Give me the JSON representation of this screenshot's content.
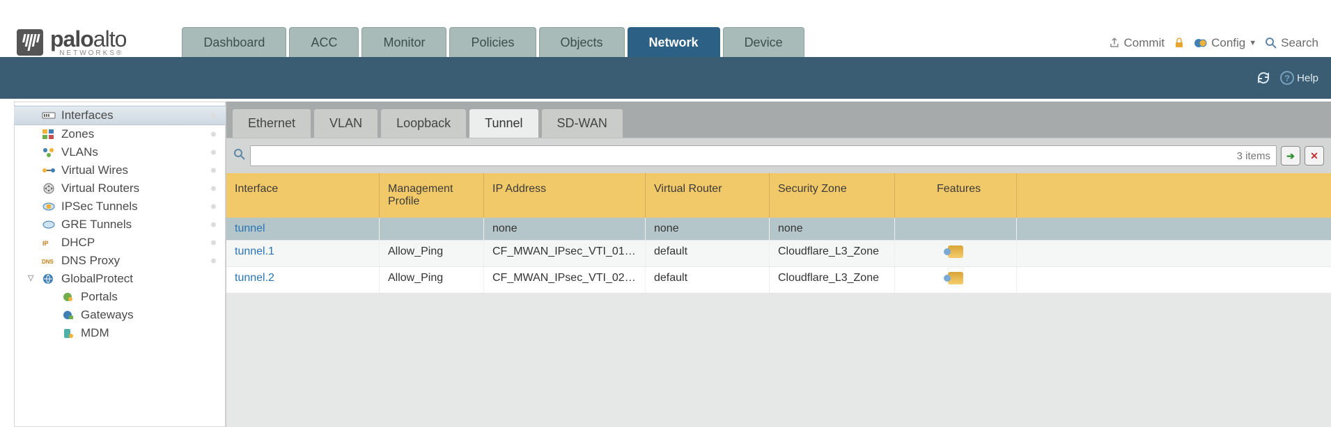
{
  "logo": {
    "main_bold": "palo",
    "main_rest": "alto",
    "sub": "NETWORKS®"
  },
  "main_tabs": [
    {
      "label": "Dashboard"
    },
    {
      "label": "ACC"
    },
    {
      "label": "Monitor"
    },
    {
      "label": "Policies"
    },
    {
      "label": "Objects"
    },
    {
      "label": "Network",
      "active": true
    },
    {
      "label": "Device"
    }
  ],
  "top_actions": {
    "commit": "Commit",
    "config": "Config",
    "search": "Search"
  },
  "help_label": "Help",
  "sidebar": [
    {
      "label": "Interfaces",
      "selected": true,
      "dot": true,
      "icon": "iface"
    },
    {
      "label": "Zones",
      "dot": true,
      "icon": "zones"
    },
    {
      "label": "VLANs",
      "dot": true,
      "icon": "vlans"
    },
    {
      "label": "Virtual Wires",
      "dot": true,
      "icon": "vwire"
    },
    {
      "label": "Virtual Routers",
      "dot": true,
      "icon": "vrouter"
    },
    {
      "label": "IPSec Tunnels",
      "dot": true,
      "icon": "ipsec"
    },
    {
      "label": "GRE Tunnels",
      "dot": true,
      "icon": "gre"
    },
    {
      "label": "DHCP",
      "dot": true,
      "icon": "dhcp"
    },
    {
      "label": "DNS Proxy",
      "dot": true,
      "icon": "dns"
    },
    {
      "label": "GlobalProtect",
      "dot": false,
      "icon": "gp",
      "expandable": true
    },
    {
      "label": "Portals",
      "lvl": 2,
      "icon": "portals"
    },
    {
      "label": "Gateways",
      "lvl": 2,
      "icon": "gw"
    },
    {
      "label": "MDM",
      "lvl": 2,
      "icon": "mdm"
    }
  ],
  "sub_tabs": [
    {
      "label": "Ethernet"
    },
    {
      "label": "VLAN"
    },
    {
      "label": "Loopback"
    },
    {
      "label": "Tunnel",
      "active": true
    },
    {
      "label": "SD-WAN"
    }
  ],
  "search_placeholder": "3 items",
  "grid": {
    "columns": [
      "Interface",
      "Management Profile",
      "IP Address",
      "Virtual Router",
      "Security Zone",
      "Features"
    ],
    "rows": [
      {
        "interface": "tunnel",
        "mgmt": "",
        "ip": "none",
        "vr": "none",
        "zone": "none",
        "feat": "",
        "selected": true
      },
      {
        "interface": "tunnel.1",
        "mgmt": "Allow_Ping",
        "ip": "CF_MWAN_IPsec_VTI_01_...",
        "vr": "default",
        "zone": "Cloudflare_L3_Zone",
        "feat": "icon"
      },
      {
        "interface": "tunnel.2",
        "mgmt": "Allow_Ping",
        "ip": "CF_MWAN_IPsec_VTI_02_...",
        "vr": "default",
        "zone": "Cloudflare_L3_Zone",
        "feat": "icon"
      }
    ]
  }
}
